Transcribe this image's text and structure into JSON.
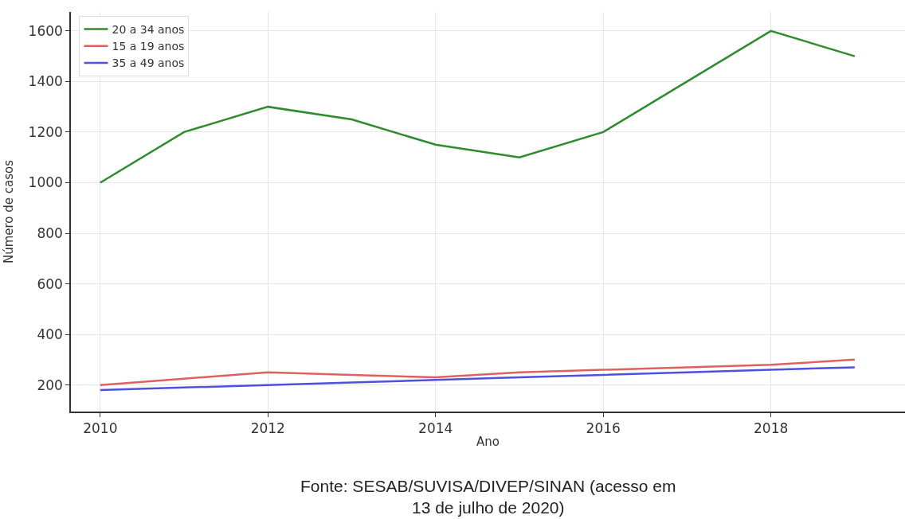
{
  "chart_data": {
    "type": "line",
    "xlabel": "Ano",
    "ylabel": "Número de casos",
    "x": [
      2010,
      2011,
      2012,
      2013,
      2014,
      2015,
      2016,
      2017,
      2018,
      2019
    ],
    "series": [
      {
        "name": "20 a 34 anos",
        "color": "#2e8b2e",
        "values": [
          1000,
          1200,
          1300,
          1250,
          1150,
          1100,
          1200,
          1400,
          1600,
          1500
        ]
      },
      {
        "name": "15 a 19 anos",
        "color": "#e06060",
        "values": [
          200,
          225,
          250,
          240,
          230,
          250,
          260,
          270,
          280,
          300
        ]
      },
      {
        "name": "35 a 49 anos",
        "color": "#5050e0",
        "values": [
          180,
          190,
          200,
          210,
          220,
          230,
          240,
          250,
          260,
          270
        ]
      }
    ],
    "xlim": [
      2009.65,
      2019.6
    ],
    "xticks": [
      2010,
      2012,
      2014,
      2016,
      2018
    ],
    "ylim": [
      95,
      1675
    ],
    "yticks": [
      200,
      400,
      600,
      800,
      1000,
      1200,
      1400,
      1600
    ],
    "grid": true,
    "legend": "top left",
    "marker": "none",
    "line_style": "solid",
    "annotations": [
      "Fonte: SESAB/SUVISA/DIVEP/SINAN (acesso em\n13 de julho de 2020)"
    ]
  }
}
